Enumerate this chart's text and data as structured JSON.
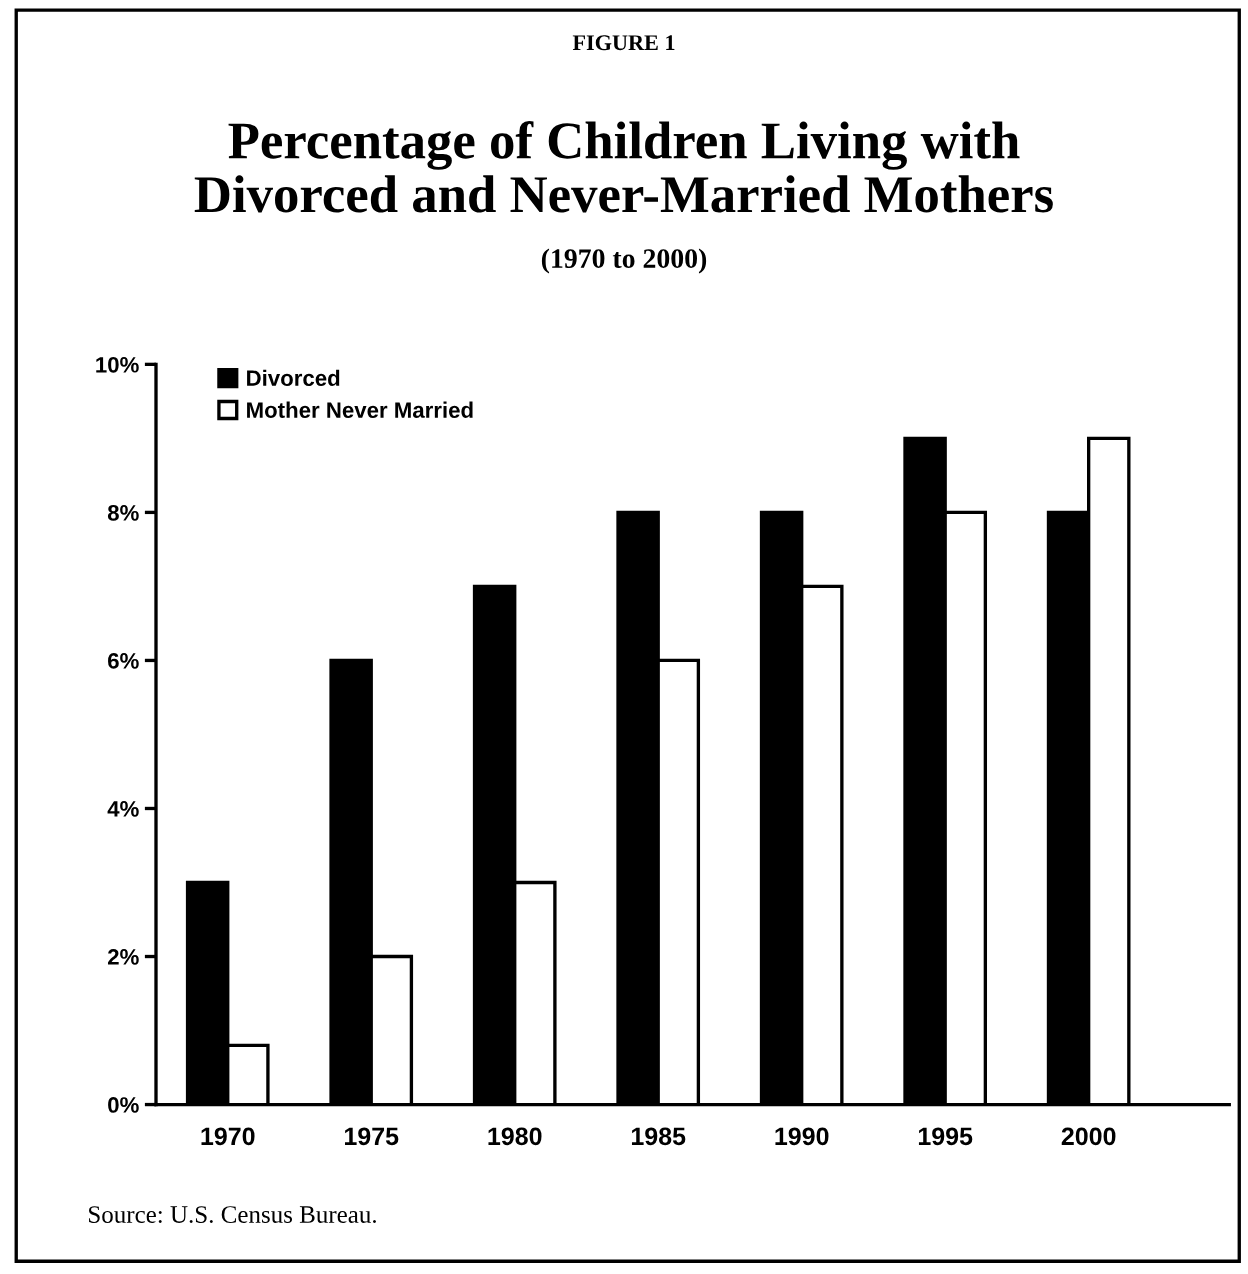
{
  "chart_data": {
    "type": "bar",
    "title": "Percentage of Children Living with\nDivorced and Never-Married Mothers",
    "subtitle": "(1970 to 2000)",
    "annotations": [
      "FIGURE 1",
      "Source: U.S. Census Bureau."
    ],
    "categories": [
      "1970",
      "1975",
      "1980",
      "1985",
      "1990",
      "1995",
      "2000"
    ],
    "series": [
      {
        "name": "Divorced",
        "color": "#000000",
        "values": [
          3,
          6,
          7,
          8,
          8,
          9,
          8
        ]
      },
      {
        "name": "Mother Never Married",
        "color": "#ffffff",
        "values": [
          0.8,
          2,
          3,
          6,
          7,
          8,
          9
        ]
      }
    ],
    "ylim": [
      0,
      10
    ],
    "yticks": [
      {
        "value": 0,
        "label": "0%"
      },
      {
        "value": 2,
        "label": "2%"
      },
      {
        "value": 4,
        "label": "4%"
      },
      {
        "value": 6,
        "label": "6%"
      },
      {
        "value": 8,
        "label": "8%"
      },
      {
        "value": 10,
        "label": "10%"
      }
    ],
    "grid": false,
    "legend": "top left"
  }
}
